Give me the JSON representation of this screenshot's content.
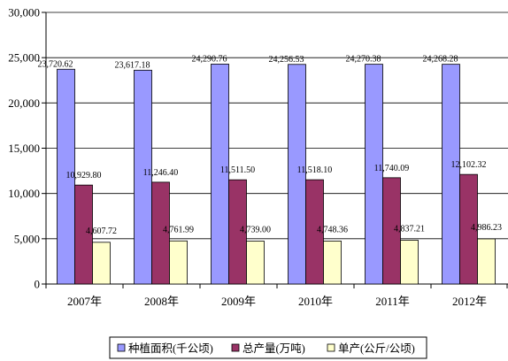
{
  "chart_data": {
    "type": "bar",
    "categories": [
      "2007年",
      "2008年",
      "2009年",
      "2010年",
      "2011年",
      "2012年"
    ],
    "series": [
      {
        "name": "种植面积(千公顷)",
        "color": "#9999ff",
        "values": [
          23720.62,
          23617.18,
          24290.76,
          24256.53,
          24270.38,
          24268.28
        ],
        "labels": [
          "23,720.62",
          "23,617.18",
          "24,290.76",
          "24,256.53",
          "24,270.38",
          "24,268.28"
        ]
      },
      {
        "name": "总产量(万吨)",
        "color": "#993366",
        "values": [
          10929.8,
          11246.4,
          11511.5,
          11518.1,
          11740.09,
          12102.32
        ],
        "labels": [
          "10,929.80",
          "11,246.40",
          "11,511.50",
          "11,518.10",
          "11,740.09",
          "12,102.32"
        ]
      },
      {
        "name": "单产(公斤/公顷)",
        "color": "#ffffcc",
        "values": [
          4607.72,
          4761.99,
          4739.0,
          4748.36,
          4837.21,
          4986.23
        ],
        "labels": [
          "4,607.72",
          "4,761.99",
          "4,739.00",
          "4,748.36",
          "4,837.21",
          "4,986.23"
        ]
      }
    ],
    "ylim": [
      0,
      30000
    ],
    "yticks": [
      0,
      5000,
      10000,
      15000,
      20000,
      25000,
      30000
    ],
    "ytick_labels": [
      "0",
      "5,000",
      "10,000",
      "15,000",
      "20,000",
      "25,000",
      "30,000"
    ],
    "grid": true,
    "legend_position": "bottom"
  }
}
